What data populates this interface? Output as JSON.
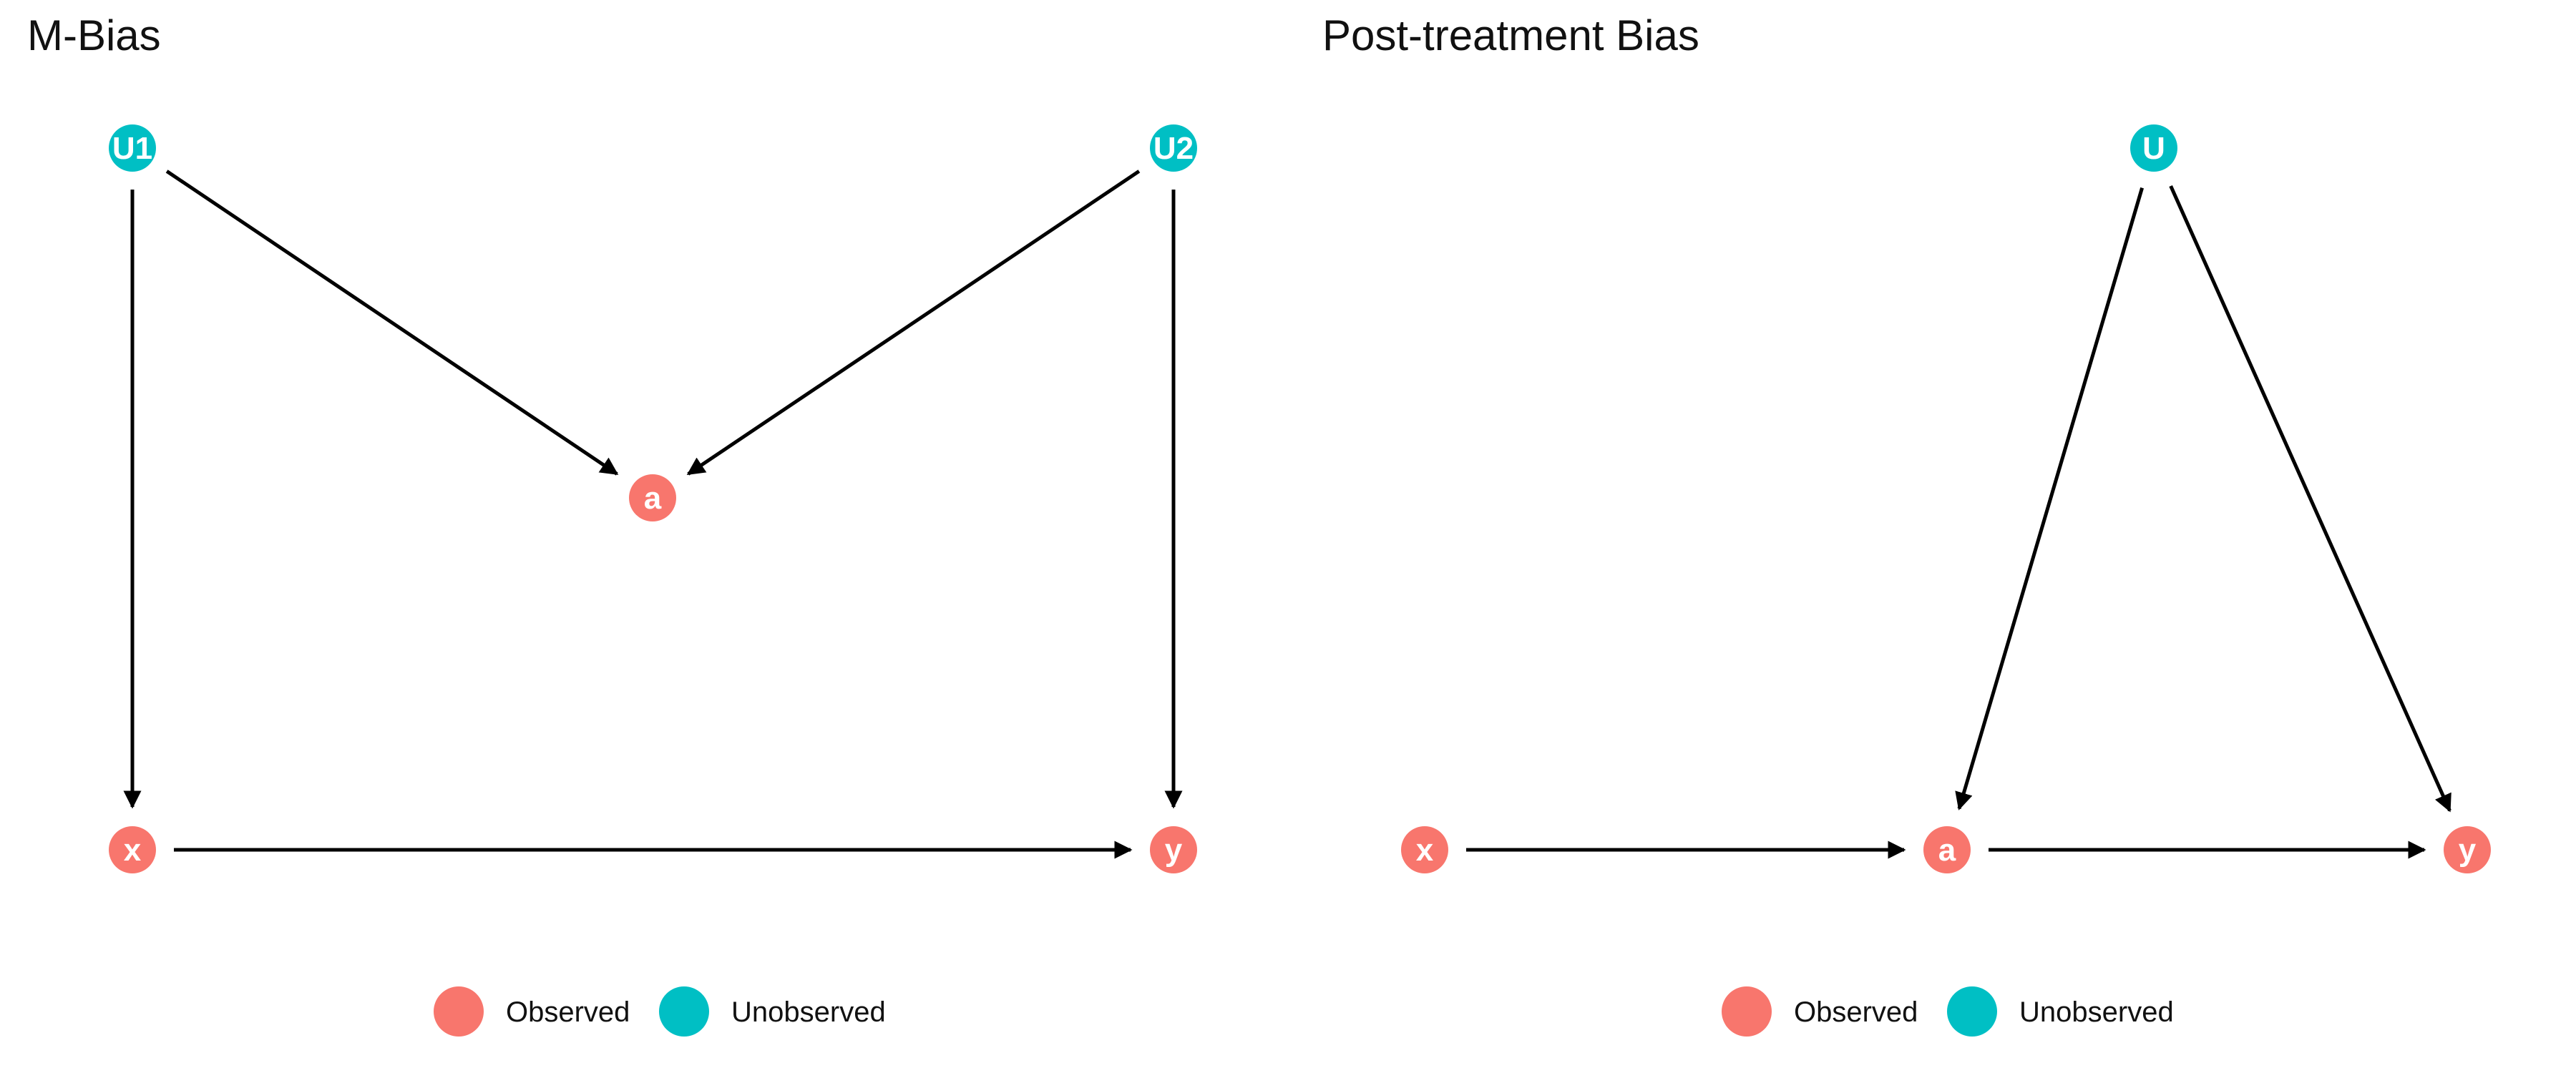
{
  "colors": {
    "observed": "#F8766D",
    "unobserved": "#00BFC4",
    "edge": "#000000"
  },
  "legend": {
    "observed_label": "Observed",
    "unobserved_label": "Unobserved"
  },
  "panels": [
    {
      "id": "m-bias",
      "title": "M-Bias",
      "nodes": [
        {
          "id": "U1",
          "label": "U1",
          "status": "unobserved"
        },
        {
          "id": "U2",
          "label": "U2",
          "status": "unobserved"
        },
        {
          "id": "a",
          "label": "a",
          "status": "observed"
        },
        {
          "id": "x",
          "label": "x",
          "status": "observed"
        },
        {
          "id": "y",
          "label": "y",
          "status": "observed"
        }
      ],
      "edges": [
        {
          "from": "U1",
          "to": "a"
        },
        {
          "from": "U2",
          "to": "a"
        },
        {
          "from": "U1",
          "to": "x"
        },
        {
          "from": "U2",
          "to": "y"
        },
        {
          "from": "x",
          "to": "y"
        }
      ]
    },
    {
      "id": "post-treatment-bias",
      "title": "Post-treatment Bias",
      "nodes": [
        {
          "id": "U",
          "label": "U",
          "status": "unobserved"
        },
        {
          "id": "x",
          "label": "x",
          "status": "observed"
        },
        {
          "id": "a",
          "label": "a",
          "status": "observed"
        },
        {
          "id": "y",
          "label": "y",
          "status": "observed"
        }
      ],
      "edges": [
        {
          "from": "x",
          "to": "a"
        },
        {
          "from": "a",
          "to": "y"
        },
        {
          "from": "U",
          "to": "a"
        },
        {
          "from": "U",
          "to": "y"
        }
      ]
    }
  ]
}
